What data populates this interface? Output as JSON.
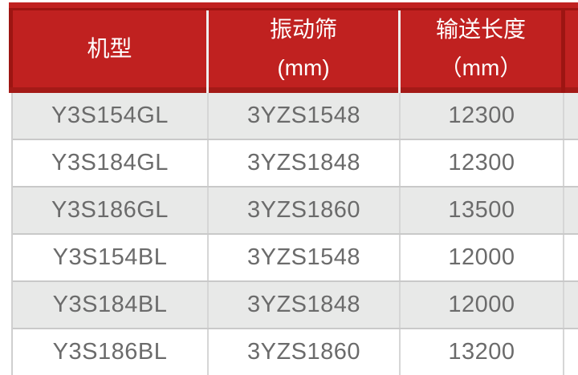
{
  "colors": {
    "header_fill": "#c02120",
    "header_border_dark": "#9d1512",
    "header_text": "#ffffff",
    "row_alt_bg": "#e8e9e8",
    "row_white_bg": "#ffffff",
    "row_border": "#c9c9c9",
    "column_border": "#d6d6d6",
    "body_text": "#6b6b6b"
  },
  "table": {
    "headers": [
      {
        "line1": "机型",
        "line2": ""
      },
      {
        "line1": "振动筛",
        "line2": "(mm)"
      },
      {
        "line1": "输送长度",
        "line2": "（mm）"
      }
    ],
    "rows": [
      {
        "model": "Y3S154GL",
        "screen": "3YZS1548",
        "length": "12300"
      },
      {
        "model": "Y3S184GL",
        "screen": "3YZS1848",
        "length": "12300"
      },
      {
        "model": "Y3S186GL",
        "screen": "3YZS1860",
        "length": "13500"
      },
      {
        "model": "Y3S154BL",
        "screen": "3YZS1548",
        "length": "12000"
      },
      {
        "model": "Y3S184BL",
        "screen": "3YZS1848",
        "length": "12000"
      },
      {
        "model": "Y3S186BL",
        "screen": "3YZS1860",
        "length": "13200"
      }
    ]
  },
  "chart_data": {
    "type": "table",
    "title": "",
    "columns": [
      "机型",
      "振动筛 (mm)",
      "输送长度 （mm）"
    ],
    "rows": [
      [
        "Y3S154GL",
        "3YZS1548",
        "12300"
      ],
      [
        "Y3S184GL",
        "3YZS1848",
        "12300"
      ],
      [
        "Y3S186GL",
        "3YZS1860",
        "13500"
      ],
      [
        "Y3S154BL",
        "3YZS1548",
        "12000"
      ],
      [
        "Y3S184BL",
        "3YZS1848",
        "12000"
      ],
      [
        "Y3S186BL",
        "3YZS1860",
        "13200"
      ]
    ]
  }
}
